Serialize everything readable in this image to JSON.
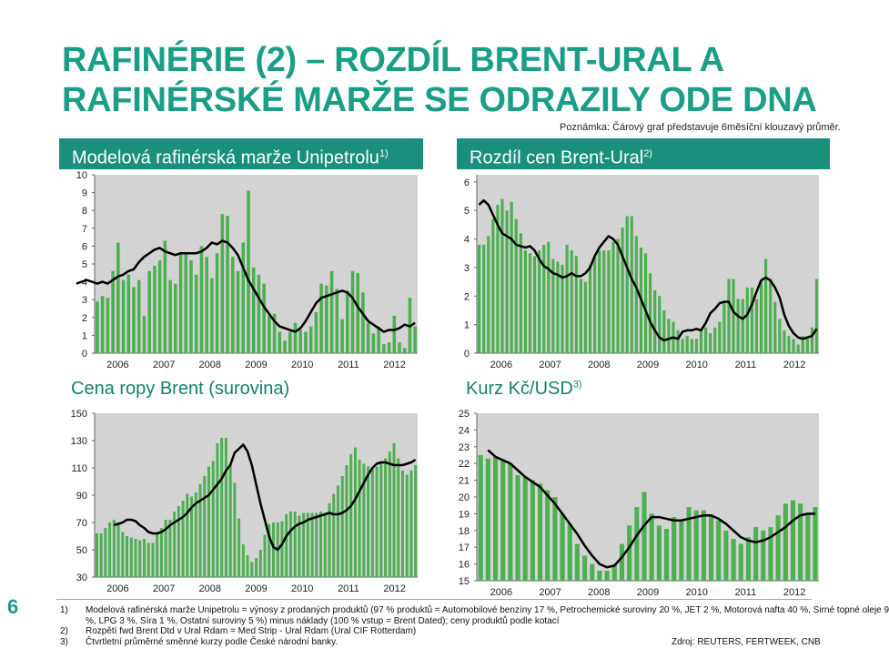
{
  "page": {
    "title": "RAFINÉRIE (2) – ROZDÍL BRENT-URAL A\nRAFINÉRSKÉ MARŽE SE ODRAZILY ODE DNA",
    "note": "Poznámka: Čárový graf představuje 6měsíční klouzavý průměr.",
    "page_number": "6",
    "source": "Zdroj: REUTERS, FERTWEEK, CNB"
  },
  "panels": {
    "p1": {
      "label": "Modelová rafinérská marže Unipetrolu",
      "sup": "1)"
    },
    "p2": {
      "label": "Rozdíl cen Brent-Ural",
      "sup": "2)"
    },
    "p3": {
      "label": "Cena ropy Brent (surovina)",
      "sup": ""
    },
    "p4": {
      "label": "Kurz Kč/USD",
      "sup": "3)"
    }
  },
  "footnotes": [
    {
      "num": "1)",
      "lines": [
        "Modelová rafinérská marže Unipetrolu = výnosy z prodaných produktů (97 % produktů = Automobilové benzíny 17 %, Petrochemické suroviny 20 %, JET 2 %, Motorová nafta 40 %, Sirné topné oleje 9",
        "%, LPG 3 %, Síra 1 %, Ostatní suroviny 5 %) minus náklady (100 % vstup = Brent Dated); ceny produktů podle kotací"
      ]
    },
    {
      "num": "2)",
      "lines": [
        "Rozpětí fwd Brent Dtd v Ural Rdam = Med Strip - Ural Rdam (Ural CIF Rotterdam)"
      ]
    },
    {
      "num": "3)",
      "lines": [
        "Čtvrtletní průměrné směnné kurzy podle České národní banky."
      ]
    }
  ],
  "colors": {
    "bar": "#4caf50",
    "line": "#000000",
    "plot_bg": "#d3d3d3",
    "header_bg": "#1a8f7c",
    "title": "#1a9e86"
  },
  "chart_data": [
    {
      "id": "margin",
      "type": "bar+line",
      "x_labels": [
        "2006",
        "2007",
        "2008",
        "2009",
        "2010",
        "2011",
        "2012"
      ],
      "y_ticks": [
        0,
        1,
        2,
        3,
        4,
        5,
        6,
        7,
        8,
        9,
        10
      ],
      "ylim": [
        0,
        10
      ],
      "values": [
        2.9,
        3.2,
        3.1,
        4.6,
        6.2,
        4.1,
        4.4,
        3.7,
        4.1,
        2.1,
        4.6,
        4.9,
        5.2,
        6.3,
        4.1,
        3.9,
        5.6,
        5.6,
        5.2,
        4.4,
        6.0,
        5.4,
        4.2,
        5.6,
        7.8,
        7.7,
        5.4,
        4.6,
        6.2,
        9.1,
        4.8,
        4.4,
        3.9,
        2.1,
        2.2,
        1.2,
        0.7,
        1.2,
        1.7,
        1.3,
        1.2,
        1.5,
        2.3,
        3.9,
        3.8,
        4.6,
        3.6,
        1.9,
        3.5,
        4.6,
        4.5,
        3.4,
        1.7,
        1.1,
        1.5,
        0.5,
        0.6,
        2.1,
        0.6,
        0.3,
        3.1,
        1.5
      ],
      "ma": [
        3.9,
        4.0,
        4.1,
        4.0,
        3.9,
        4.0,
        3.9,
        4.1,
        4.3,
        4.4,
        4.6,
        4.7,
        5.1,
        5.4,
        5.6,
        5.8,
        5.9,
        5.7,
        5.6,
        5.5,
        5.6,
        5.6,
        5.6,
        5.6,
        5.7,
        5.9,
        6.2,
        6.1,
        6.3,
        6.2,
        5.9,
        5.5,
        4.8,
        4.1,
        3.6,
        3.1,
        2.6,
        2.2,
        1.8,
        1.5,
        1.4,
        1.3,
        1.2,
        1.4,
        1.8,
        2.3,
        2.8,
        3.1,
        3.2,
        3.3,
        3.4,
        3.5,
        3.4,
        3.1,
        2.6,
        2.2,
        1.8,
        1.6,
        1.4,
        1.2,
        1.3,
        1.3,
        1.4,
        1.6,
        1.5,
        1.7
      ]
    },
    {
      "id": "spread",
      "type": "bar+line",
      "x_labels": [
        "2006",
        "2007",
        "2008",
        "2009",
        "2010",
        "2011",
        "2012"
      ],
      "y_ticks": [
        0,
        1,
        2,
        3,
        4,
        5,
        6
      ],
      "ylim": [
        0,
        6.25
      ],
      "values": [
        3.8,
        3.8,
        4.1,
        4.7,
        5.2,
        5.4,
        5.0,
        5.3,
        4.7,
        4.2,
        3.6,
        3.5,
        3.4,
        3.6,
        3.8,
        3.9,
        3.3,
        3.2,
        3.1,
        3.8,
        3.6,
        3.4,
        2.6,
        2.5,
        3.1,
        3.4,
        3.6,
        3.6,
        3.6,
        3.9,
        4.0,
        4.4,
        4.8,
        4.8,
        4.1,
        3.7,
        3.5,
        2.8,
        2.2,
        2.0,
        1.5,
        1.2,
        1.1,
        0.8,
        0.5,
        0.6,
        0.5,
        0.5,
        0.8,
        0.9,
        0.7,
        0.9,
        1.1,
        1.8,
        2.6,
        2.6,
        1.9,
        1.9,
        2.3,
        2.3,
        1.9,
        2.5,
        3.3,
        2.6,
        1.8,
        1.2,
        0.8,
        0.6,
        0.5,
        0.3,
        0.6,
        0.5,
        0.9,
        2.6
      ],
      "ma": [
        5.2,
        5.35,
        5.2,
        4.85,
        4.5,
        4.2,
        4.1,
        4.0,
        3.8,
        3.75,
        3.7,
        3.75,
        3.6,
        3.3,
        3.05,
        2.95,
        2.8,
        2.75,
        2.65,
        2.7,
        2.8,
        2.7,
        2.7,
        2.8,
        3.0,
        3.4,
        3.7,
        3.9,
        4.1,
        4.0,
        3.8,
        3.4,
        3.0,
        2.6,
        2.3,
        1.9,
        1.5,
        1.1,
        0.8,
        0.55,
        0.45,
        0.5,
        0.55,
        0.5,
        0.75,
        0.8,
        0.8,
        0.85,
        0.8,
        1.05,
        1.4,
        1.55,
        1.75,
        1.8,
        1.8,
        1.45,
        1.3,
        1.2,
        1.35,
        1.7,
        2.15,
        2.55,
        2.65,
        2.55,
        2.3,
        1.95,
        1.35,
        0.95,
        0.7,
        0.55,
        0.5,
        0.55,
        0.6,
        0.85
      ]
    },
    {
      "id": "brent",
      "type": "bar+line",
      "x_labels": [
        "2006",
        "2007",
        "2008",
        "2009",
        "2010",
        "2011",
        "2012"
      ],
      "y_ticks": [
        30,
        50,
        70,
        90,
        110,
        130,
        150
      ],
      "ylim": [
        30,
        150
      ],
      "values": [
        62,
        62,
        66,
        70,
        72,
        70,
        63,
        60,
        59,
        58,
        57,
        58,
        55,
        55,
        62,
        66,
        72,
        72,
        78,
        82,
        86,
        91,
        89,
        92,
        98,
        104,
        111,
        115,
        128,
        132,
        132,
        113,
        99,
        73,
        54,
        46,
        41,
        44,
        50,
        61,
        69,
        70,
        70,
        71,
        76,
        78,
        78,
        75,
        77,
        77,
        77,
        77,
        78,
        77,
        84,
        91,
        97,
        104,
        112,
        120,
        125,
        116,
        113,
        111,
        110,
        111,
        113,
        117,
        122,
        128,
        117,
        108,
        105,
        108,
        112
      ],
      "ma": [
        68,
        69,
        70,
        72,
        72,
        71,
        68,
        66,
        63,
        62,
        62,
        63,
        65,
        68,
        70,
        72,
        74,
        77,
        81,
        84,
        86,
        88,
        90,
        94,
        98,
        102,
        108,
        112,
        121,
        124,
        127,
        122,
        112,
        98,
        84,
        72,
        60,
        52,
        50,
        54,
        60,
        64,
        67,
        69,
        70,
        72,
        73,
        74,
        75,
        76,
        77,
        76,
        76,
        77,
        79,
        82,
        87,
        93,
        99,
        105,
        110,
        113,
        114,
        114,
        113,
        112,
        112,
        112,
        113,
        114,
        116
      ]
    },
    {
      "id": "czkusd",
      "type": "bar+line",
      "x_labels": [
        "2006",
        "2007",
        "2008",
        "2009",
        "2010",
        "2011",
        "2012"
      ],
      "y_ticks": [
        15,
        16,
        17,
        18,
        19,
        20,
        21,
        22,
        23,
        24,
        25
      ],
      "ylim": [
        15,
        25
      ],
      "values": [
        22.5,
        22.3,
        22.4,
        22.2,
        22.0,
        21.3,
        21.2,
        21.0,
        20.8,
        20.4,
        20.0,
        19.0,
        18.4,
        17.2,
        16.5,
        16.0,
        15.6,
        15.6,
        16.0,
        17.2,
        18.3,
        19.4,
        20.3,
        19.0,
        18.3,
        18.1,
        18.8,
        18.6,
        19.4,
        19.2,
        19.2,
        18.9,
        18.6,
        18.0,
        17.5,
        17.2,
        17.6,
        18.2,
        18.0,
        18.2,
        18.9,
        19.6,
        19.8,
        19.6,
        19.0,
        19.4
      ],
      "ma": [
        22.8,
        22.4,
        22.2,
        22.0,
        21.6,
        21.2,
        20.9,
        20.6,
        20.1,
        19.6,
        19.0,
        18.4,
        17.8,
        17.1,
        16.5,
        16.0,
        15.8,
        15.9,
        16.4,
        17.0,
        17.7,
        18.3,
        18.8,
        18.8,
        18.7,
        18.6,
        18.6,
        18.7,
        18.8,
        18.9,
        18.9,
        18.7,
        18.4,
        18.0,
        17.6,
        17.4,
        17.3,
        17.4,
        17.6,
        17.9,
        18.2,
        18.6,
        18.9,
        19.0,
        19.0
      ]
    }
  ]
}
